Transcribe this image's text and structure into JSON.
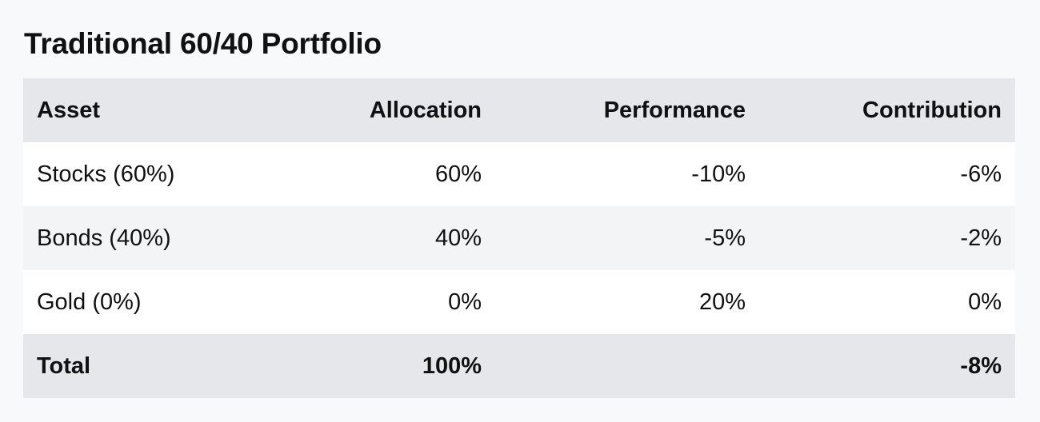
{
  "title": "Traditional 60/40 Portfolio",
  "table": {
    "headers": {
      "asset": "Asset",
      "allocation": "Allocation",
      "performance": "Performance",
      "contribution": "Contribution"
    },
    "rows": [
      {
        "asset": "Stocks (60%)",
        "allocation": "60%",
        "performance": "-10%",
        "contribution": "-6%"
      },
      {
        "asset": "Bonds (40%)",
        "allocation": "40%",
        "performance": "-5%",
        "contribution": "-2%"
      },
      {
        "asset": "Gold (0%)",
        "allocation": "0%",
        "performance": "20%",
        "contribution": "0%"
      }
    ],
    "total": {
      "asset": "Total",
      "allocation": "100%",
      "performance": "",
      "contribution": "-8%"
    }
  }
}
